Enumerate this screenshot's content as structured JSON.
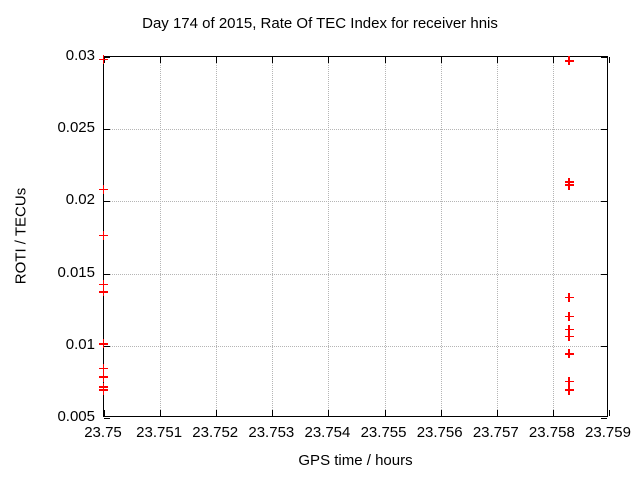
{
  "title": "Day 174 of 2015, Rate Of TEC Index for receiver hnis",
  "colors": {
    "background": "#ffffff",
    "axis": "#000000",
    "grid": "#b5b5b5",
    "marker": "#ff0000"
  },
  "chart_data": {
    "type": "scatter",
    "title": "Day 174 of 2015, Rate Of TEC Index for receiver hnis",
    "xlabel": "GPS time / hours",
    "ylabel": "ROTI / TECUs",
    "xlim": [
      23.75,
      23.759
    ],
    "ylim": [
      0.005,
      0.03
    ],
    "grid": true,
    "legend": "none",
    "marker": "plus",
    "marker_color": "#ff0000",
    "xticks": [
      {
        "value": 23.75,
        "label": "23.75"
      },
      {
        "value": 23.751,
        "label": "23.751"
      },
      {
        "value": 23.752,
        "label": "23.752"
      },
      {
        "value": 23.753,
        "label": "23.753"
      },
      {
        "value": 23.754,
        "label": "23.754"
      },
      {
        "value": 23.755,
        "label": "23.755"
      },
      {
        "value": 23.756,
        "label": "23.756"
      },
      {
        "value": 23.757,
        "label": "23.757"
      },
      {
        "value": 23.758,
        "label": "23.758"
      },
      {
        "value": 23.759,
        "label": "23.759"
      }
    ],
    "yticks": [
      {
        "value": 0.005,
        "label": "0.005"
      },
      {
        "value": 0.01,
        "label": "0.01"
      },
      {
        "value": 0.015,
        "label": "0.015"
      },
      {
        "value": 0.02,
        "label": "0.02"
      },
      {
        "value": 0.025,
        "label": "0.025"
      },
      {
        "value": 0.03,
        "label": "0.03"
      }
    ],
    "series": [
      {
        "name": "",
        "x": [
          23.75,
          23.75,
          23.75,
          23.75,
          23.75,
          23.75,
          23.75,
          23.75,
          23.75,
          23.75,
          23.7583,
          23.7583,
          23.7583,
          23.7583,
          23.7583,
          23.7583,
          23.7583,
          23.7583,
          23.7583,
          23.7583
        ],
        "y": [
          0.0298,
          0.0208,
          0.0176,
          0.0142,
          0.0137,
          0.0101,
          0.0084,
          0.0078,
          0.0071,
          0.0069,
          0.0297,
          0.0213,
          0.0211,
          0.0133,
          0.012,
          0.0111,
          0.0106,
          0.0094,
          0.0075,
          0.0069
        ]
      }
    ]
  }
}
